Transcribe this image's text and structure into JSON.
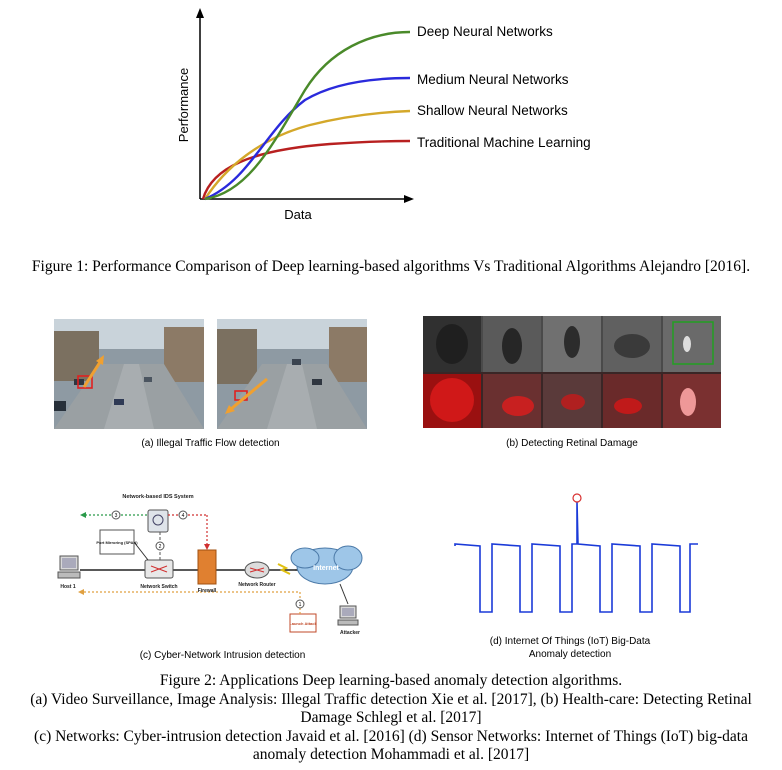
{
  "figure1": {
    "chart_data": {
      "type": "line",
      "xlabel": "Data",
      "ylabel": "Performance",
      "series": [
        {
          "name": "Deep Neural Networks",
          "color": "#4a8a2a"
        },
        {
          "name": "Medium Neural Networks",
          "color": "#2a2adc"
        },
        {
          "name": "Shallow Neural Networks",
          "color": "#d4a82a"
        },
        {
          "name": "Traditional Machine Learning",
          "color": "#b82020"
        }
      ],
      "grid": false
    },
    "caption": "Figure 1: Performance Comparison of Deep learning-based algorithms Vs Traditional Algorithms Alejandro [2016]."
  },
  "figure2": {
    "panel_a": {
      "caption": "(a) Illegal Traffic Flow detection"
    },
    "panel_b": {
      "caption": "(b) Detecting Retinal Damage"
    },
    "panel_c": {
      "caption": "(c) Cyber-Network Intrusion detection",
      "labels": {
        "ids": "Network-based IDS System",
        "port_mirroring": "Port Mirroring (SPAN)",
        "host": "Host 1",
        "switch": "Network Switch",
        "firewall": "Firewall",
        "router": "Network Router",
        "internet": "Internet",
        "attacker": "Attacker",
        "launch_attack": "Launch Attack",
        "step1": "1",
        "step2": "2",
        "step3": "3",
        "step4": "4"
      }
    },
    "panel_d": {
      "caption_line1": "(d) Internet Of Things (IoT) Big-Data",
      "caption_line2": "Anomaly detection"
    },
    "caption_lines": [
      "Figure 2: Applications Deep learning-based anomaly detection algorithms.",
      "(a) Video Surveillance, Image Analysis: Illegal Traffic detection Xie et al. [2017], (b) Health-care: Detecting Retinal",
      "Damage Schlegl et al. [2017]",
      "(c) Networks: Cyber-intrusion detection Javaid et al. [2016] (d) Sensor Networks: Internet of Things (IoT) big-data",
      "anomaly detection Mohammadi et al. [2017]"
    ]
  }
}
